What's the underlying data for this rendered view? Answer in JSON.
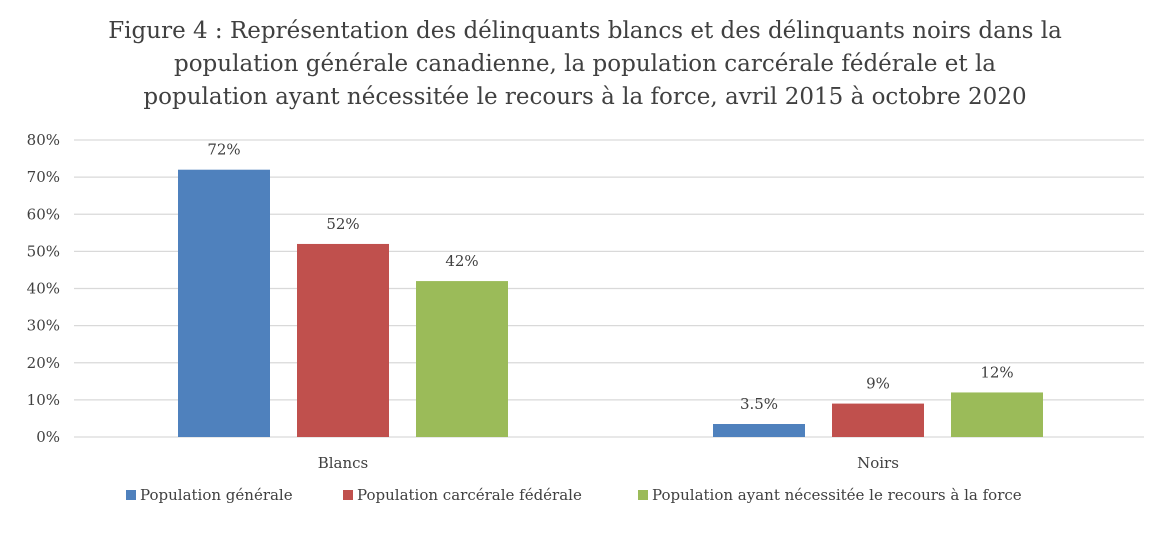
{
  "chart_data": {
    "type": "bar",
    "title_lines": [
      "Figure 4 : Représentation des délinquants blancs et des délinquants noirs dans la",
      "population générale canadienne, la population carcérale fédérale et la",
      "population ayant nécessitée le recours à la force, avril 2015 à octobre 2020"
    ],
    "categories": [
      "Blancs",
      "Noirs"
    ],
    "series": [
      {
        "name": "Population générale",
        "values": [
          72,
          3.5
        ],
        "labels": [
          "72%",
          "3.5%"
        ],
        "color": "#4f81bd"
      },
      {
        "name": "Population carcérale fédérale",
        "values": [
          52,
          9
        ],
        "labels": [
          "52%",
          "9%"
        ],
        "color": "#c0504d"
      },
      {
        "name": "Population ayant nécessitée le recours à la force",
        "values": [
          42,
          12
        ],
        "labels": [
          "42%",
          "12%"
        ],
        "color": "#9bbb59"
      }
    ],
    "ylim": [
      0,
      80
    ],
    "yticks": [
      {
        "value": 0,
        "label": "0%"
      },
      {
        "value": 10,
        "label": "10%"
      },
      {
        "value": 20,
        "label": "20%"
      },
      {
        "value": 30,
        "label": "30%"
      },
      {
        "value": 40,
        "label": "40%"
      },
      {
        "value": 50,
        "label": "50%"
      },
      {
        "value": 60,
        "label": "60%"
      },
      {
        "value": 70,
        "label": "70%"
      },
      {
        "value": 80,
        "label": "80%"
      }
    ],
    "grid": true,
    "legend": "bottom"
  }
}
